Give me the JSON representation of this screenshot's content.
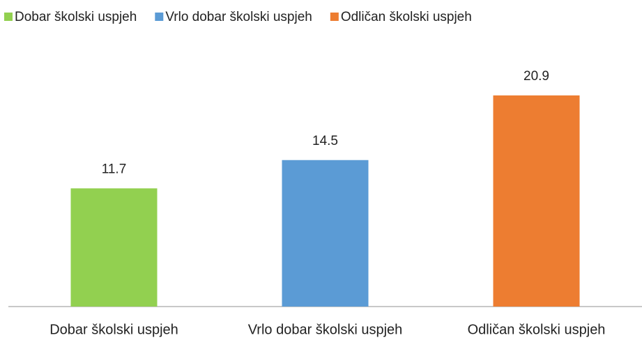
{
  "chart_data": {
    "type": "bar",
    "categories": [
      "Dobar školski uspjeh",
      "Vrlo dobar školski uspjeh",
      "Odličan školski uspjeh"
    ],
    "values": [
      11.7,
      14.5,
      20.9
    ],
    "colors": [
      "#92d050",
      "#5b9bd5",
      "#ed7d31"
    ],
    "legend": "top"
  }
}
